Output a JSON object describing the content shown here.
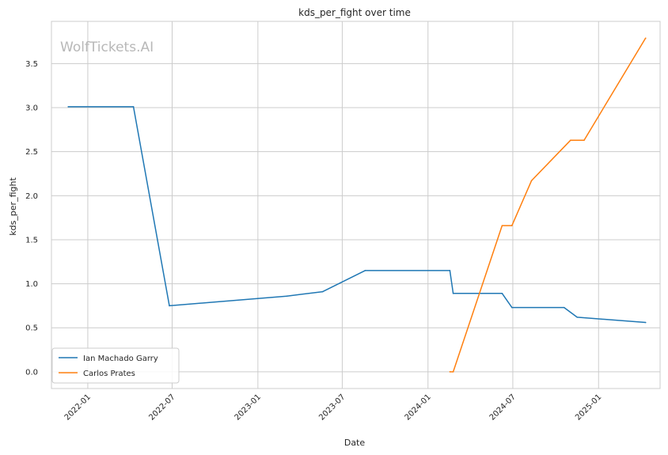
{
  "chart_data": {
    "type": "line",
    "title": "kds_per_fight over time",
    "xlabel": "Date",
    "ylabel": "kds_per_fight",
    "watermark": "WolfTickets.AI",
    "xlim": [
      "2021-10-15",
      "2025-05-13"
    ],
    "ylim": [
      -0.19,
      3.98
    ],
    "grid": true,
    "legend_position": "lower-left",
    "x_ticks": [
      "2022-01",
      "2022-07",
      "2023-01",
      "2023-07",
      "2024-01",
      "2024-07",
      "2025-01"
    ],
    "y_ticks": [
      "0.0",
      "0.5",
      "1.0",
      "1.5",
      "2.0",
      "2.5",
      "3.0",
      "3.5"
    ],
    "series": [
      {
        "name": "Ian Machado Garry",
        "color": "#1f77b4",
        "points": [
          {
            "x": "2021-11-20",
            "y": 3.01
          },
          {
            "x": "2022-04-09",
            "y": 3.01
          },
          {
            "x": "2022-06-25",
            "y": 0.75
          },
          {
            "x": "2023-03-04",
            "y": 0.86
          },
          {
            "x": "2023-05-20",
            "y": 0.91
          },
          {
            "x": "2023-08-19",
            "y": 1.15
          },
          {
            "x": "2024-02-17",
            "y": 1.15
          },
          {
            "x": "2024-02-24",
            "y": 0.89
          },
          {
            "x": "2024-06-08",
            "y": 0.89
          },
          {
            "x": "2024-06-29",
            "y": 0.73
          },
          {
            "x": "2024-10-19",
            "y": 0.73
          },
          {
            "x": "2024-11-16",
            "y": 0.62
          },
          {
            "x": "2025-04-12",
            "y": 0.56
          }
        ]
      },
      {
        "name": "Carlos Prates",
        "color": "#ff7f0e",
        "points": [
          {
            "x": "2024-02-17",
            "y": 0.0
          },
          {
            "x": "2024-02-24",
            "y": 0.0
          },
          {
            "x": "2024-06-08",
            "y": 1.66
          },
          {
            "x": "2024-06-29",
            "y": 1.66
          },
          {
            "x": "2024-08-10",
            "y": 2.17
          },
          {
            "x": "2024-11-02",
            "y": 2.63
          },
          {
            "x": "2024-12-01",
            "y": 2.63
          },
          {
            "x": "2025-04-12",
            "y": 3.79
          }
        ]
      }
    ]
  }
}
